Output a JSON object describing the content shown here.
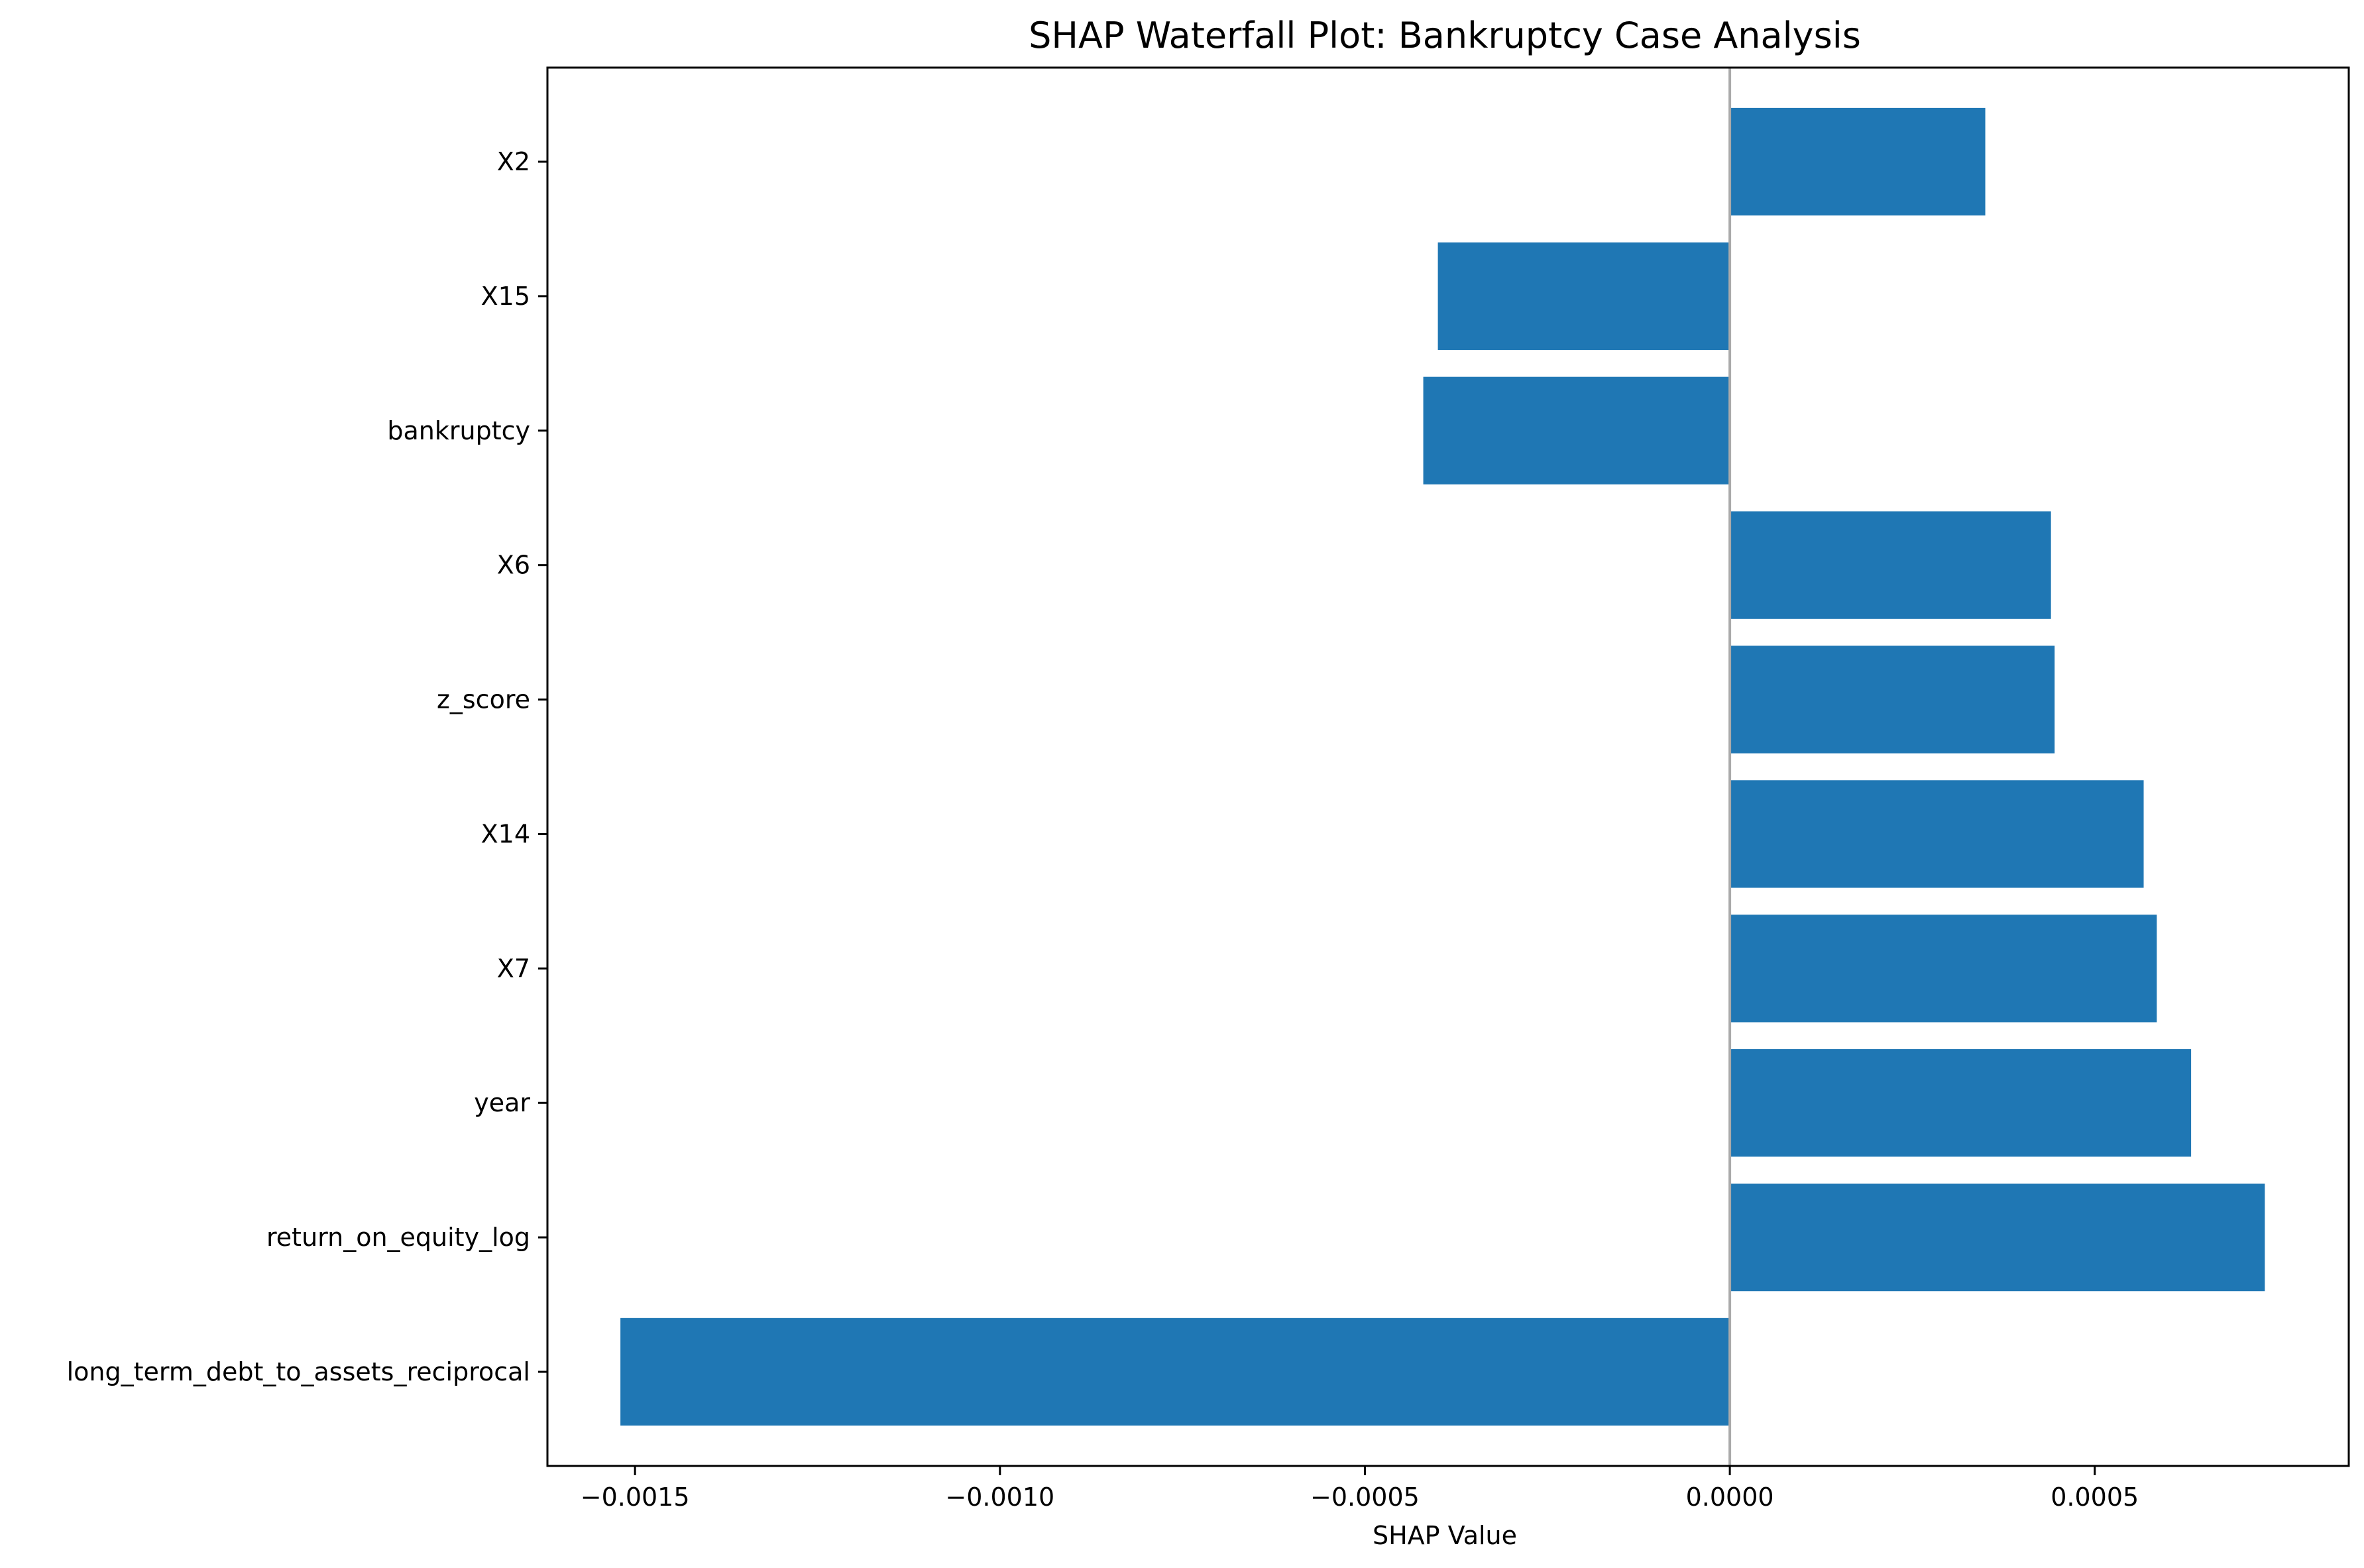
{
  "chart_data": {
    "type": "bar",
    "orientation": "horizontal",
    "title": "SHAP Waterfall Plot: Bankruptcy Case Analysis",
    "xlabel": "SHAP Value",
    "ylabel": "",
    "categories": [
      "X2",
      "X15",
      "bankruptcy",
      "X6",
      "z_score",
      "X14",
      "X7",
      "year",
      "return_on_equity_log",
      "long_term_debt_to_assets_reciprocal"
    ],
    "values": [
      0.00035,
      -0.0004,
      -0.00042,
      0.00044,
      0.000445,
      0.000567,
      0.000585,
      0.000632,
      0.000733,
      -0.00152
    ],
    "xlim": [
      -0.00162,
      0.000848
    ],
    "xticks": [
      -0.0015,
      -0.001,
      -0.0005,
      0.0,
      0.0005
    ],
    "xtick_labels": [
      "−0.0015",
      "−0.0010",
      "−0.0005",
      "0.0000",
      "0.0005"
    ],
    "zero_line": true,
    "grid": false,
    "legend": "none",
    "bar_color": "#1f77b4",
    "zero_line_color": "#aaaaaa"
  }
}
